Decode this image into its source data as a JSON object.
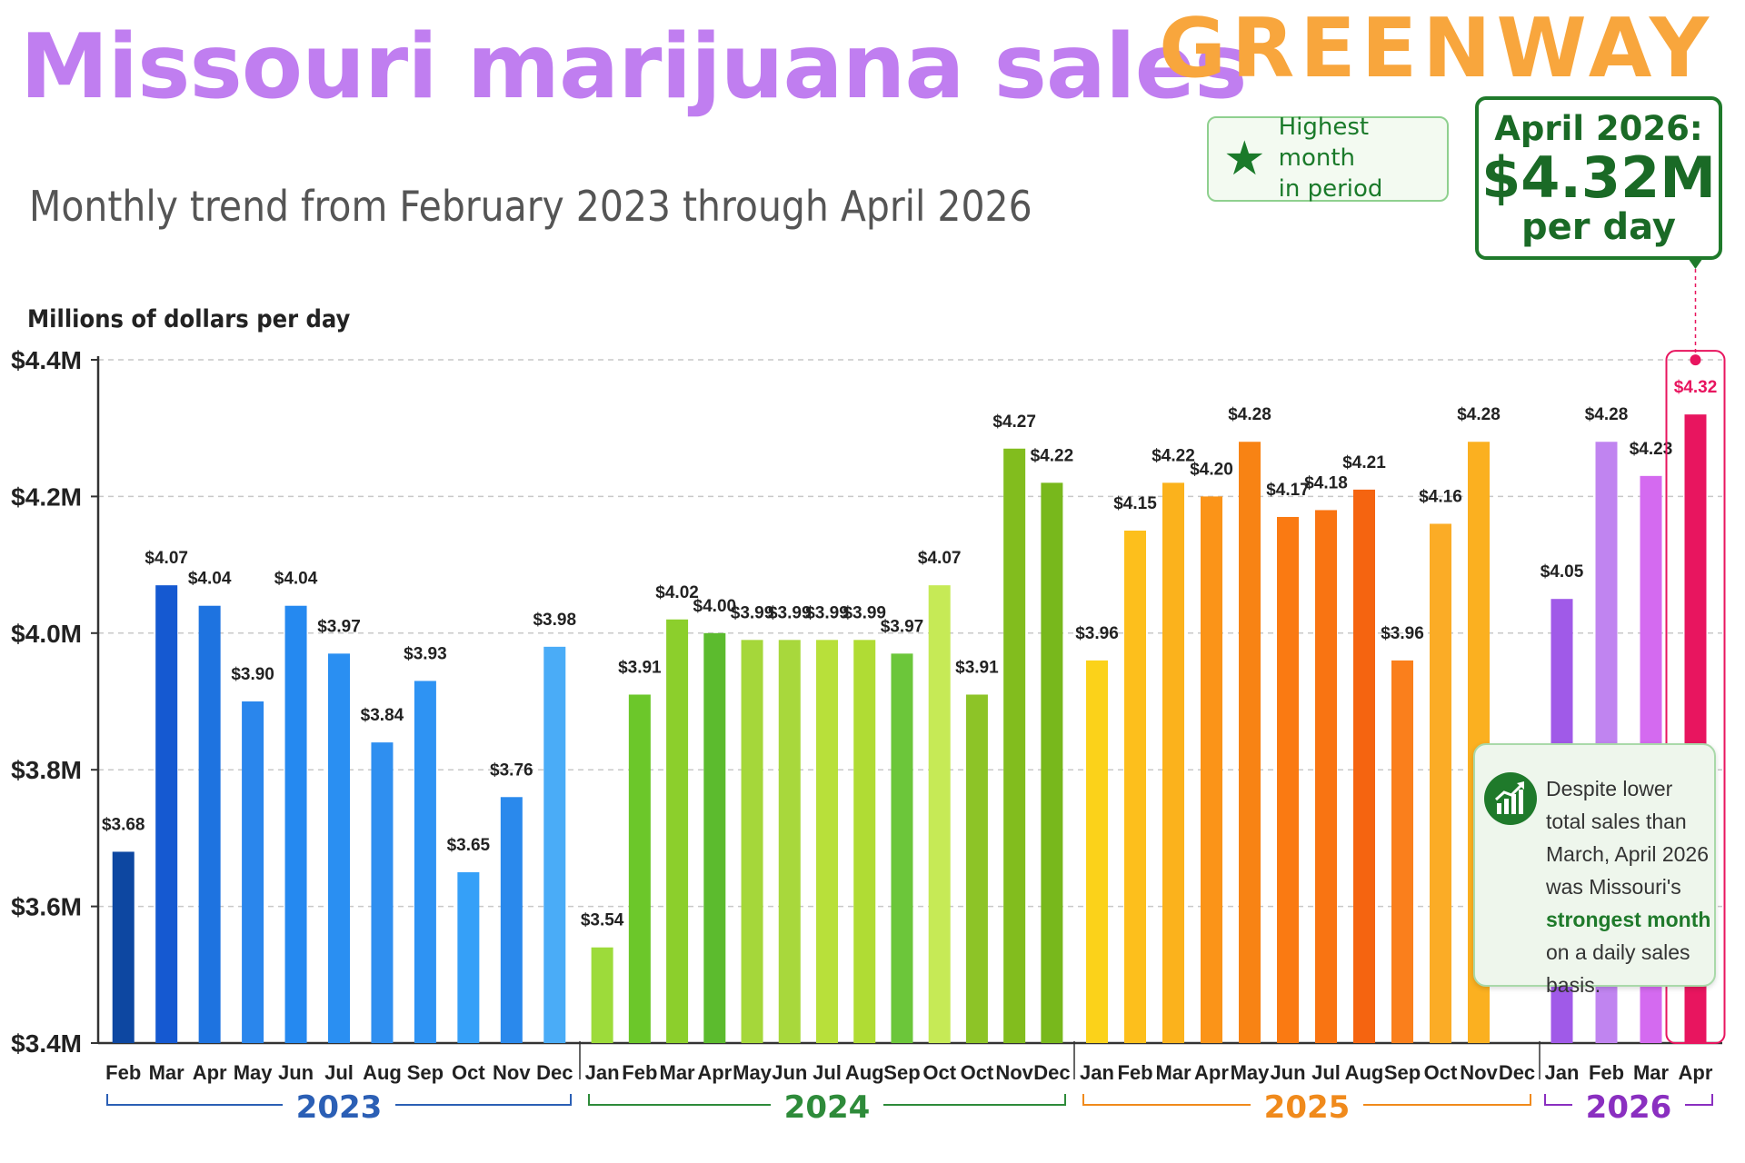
{
  "header": {
    "title": "Missouri marijuana sales",
    "brand": "GREENWAY",
    "subtitle": "Monthly trend from February 2023 through April 2026"
  },
  "badge": {
    "icon": "star-icon",
    "line1": "Highest month",
    "line2": "in period"
  },
  "highlight": {
    "line1": "April 2026:",
    "value": "$4.32M",
    "line3": "per day"
  },
  "note": {
    "icon": "chart-growth-icon",
    "text_before": "Despite lower total sales than March, April 2026 was Missouri's ",
    "text_bold": "strongest month",
    "text_after": " on a daily sales basis."
  },
  "colors": {
    "title": "#c07ef0",
    "brand": "#f8a63d",
    "highlight_green": "#1f7a2b",
    "peak": "#e8155f"
  },
  "chart_data": {
    "type": "bar",
    "ylabel": "Millions of dollars per day",
    "ylim": [
      3.4,
      4.4
    ],
    "yticks": [
      {
        "value": 4.4,
        "label": "$4.4M"
      },
      {
        "value": 4.2,
        "label": "$4.2M"
      },
      {
        "value": 4.0,
        "label": "$4.0M"
      },
      {
        "value": 3.8,
        "label": "$3.8M"
      },
      {
        "value": 3.6,
        "label": "$3.6M"
      },
      {
        "value": 3.4,
        "label": "$3.4M"
      }
    ],
    "grid": true,
    "years": [
      {
        "year": "2023",
        "color": "#2b5fb5",
        "months": [
          {
            "m": "Feb",
            "v": 3.68,
            "label": "$3.68",
            "color": "#0d47a1"
          },
          {
            "m": "Mar",
            "v": 4.07,
            "label": "$4.07",
            "color": "#1559d1"
          },
          {
            "m": "Apr",
            "v": 4.04,
            "label": "$4.04",
            "color": "#1e73e0"
          },
          {
            "m": "May",
            "v": 3.9,
            "label": "$3.90",
            "color": "#2a86ec"
          },
          {
            "m": "Jun",
            "v": 4.04,
            "label": "$4.04",
            "color": "#2589f0"
          },
          {
            "m": "Jul",
            "v": 3.97,
            "label": "$3.97",
            "color": "#2a8ff2"
          },
          {
            "m": "Aug",
            "v": 3.84,
            "label": "$3.84",
            "color": "#2f8ff0"
          },
          {
            "m": "Sep",
            "v": 3.93,
            "label": "$3.93",
            "color": "#2e93f3"
          },
          {
            "m": "Oct",
            "v": 3.65,
            "label": "$3.65",
            "color": "#35a0f8"
          },
          {
            "m": "Nov",
            "v": 3.76,
            "label": "$3.76",
            "color": "#2a89ec"
          },
          {
            "m": "Dec",
            "v": 3.98,
            "label": "$3.98",
            "color": "#4aacf7"
          }
        ]
      },
      {
        "year": "2024",
        "color": "#2e8b3a",
        "months": [
          {
            "m": "Jan",
            "v": 3.54,
            "label": "$3.54",
            "color": "#9ddb3a"
          },
          {
            "m": "Feb",
            "v": 3.91,
            "label": "$3.91",
            "color": "#6cc72a"
          },
          {
            "m": "Mar",
            "v": 4.02,
            "label": "$4.02",
            "color": "#8ccf2c"
          },
          {
            "m": "Apr",
            "v": 4.0,
            "label": "$4.00",
            "color": "#5cbb2e"
          },
          {
            "m": "May",
            "v": 3.99,
            "label": "$3.99",
            "color": "#a5d73a"
          },
          {
            "m": "Jun",
            "v": 3.99,
            "label": "$3.99",
            "color": "#a8d83c"
          },
          {
            "m": "Jul",
            "v": 3.99,
            "label": "$3.99",
            "color": "#b8e03a"
          },
          {
            "m": "Aug",
            "v": 3.99,
            "label": "$3.99",
            "color": "#b0dc34"
          },
          {
            "m": "Sep",
            "v": 3.97,
            "label": "$3.97",
            "color": "#6cc63a"
          },
          {
            "m": "Oct",
            "v": 4.07,
            "label": "$4.07",
            "color": "#c6ea56"
          },
          {
            "m": "Oct",
            "v": 3.91,
            "label": "$3.91",
            "color": "#8dc427"
          },
          {
            "m": "Nov",
            "v": 4.27,
            "label": "$4.27",
            "color": "#82bd1e"
          },
          {
            "m": "Dec",
            "v": 4.22,
            "label": "$4.22",
            "color": "#78b81c"
          }
        ]
      },
      {
        "year": "2025",
        "color": "#f08a1c",
        "months": [
          {
            "m": "Jan",
            "v": 3.96,
            "label": "$3.96",
            "color": "#fbd21a"
          },
          {
            "m": "Feb",
            "v": 4.15,
            "label": "$4.15",
            "color": "#fdbf1c"
          },
          {
            "m": "Mar",
            "v": 4.22,
            "label": "$4.22",
            "color": "#fbb21c"
          },
          {
            "m": "Apr",
            "v": 4.2,
            "label": "$4.20",
            "color": "#fb9418"
          },
          {
            "m": "May",
            "v": 4.28,
            "label": "$4.28",
            "color": "#f88314"
          },
          {
            "m": "Jun",
            "v": 4.17,
            "label": "$4.17",
            "color": "#fa7a12"
          },
          {
            "m": "Jul",
            "v": 4.18,
            "label": "$4.18",
            "color": "#f97412"
          },
          {
            "m": "Aug",
            "v": 4.21,
            "label": "$4.21",
            "color": "#f56410"
          },
          {
            "m": "Sep",
            "v": 3.96,
            "label": "$3.96",
            "color": "#fa7f1c"
          },
          {
            "m": "Oct",
            "v": 4.16,
            "label": "$4.16",
            "color": "#fbac26"
          },
          {
            "m": "Nov",
            "v": 4.28,
            "label": "$4.28",
            "color": "#fbb020"
          },
          {
            "m": "Dec",
            "v": null,
            "label": "",
            "color": "#fbb020"
          }
        ]
      },
      {
        "year": "2026",
        "color": "#8a2fc0",
        "months": [
          {
            "m": "Jan",
            "v": 4.05,
            "label": "$4.05",
            "color": "#a05ae8"
          },
          {
            "m": "Feb",
            "v": 4.28,
            "label": "$4.28",
            "color": "#c084f0"
          },
          {
            "m": "Mar",
            "v": 4.23,
            "label": "$4.23",
            "color": "#d46af0"
          },
          {
            "m": "Apr",
            "v": 4.32,
            "label": "$4.32",
            "color": "#e8155f"
          }
        ]
      }
    ]
  }
}
